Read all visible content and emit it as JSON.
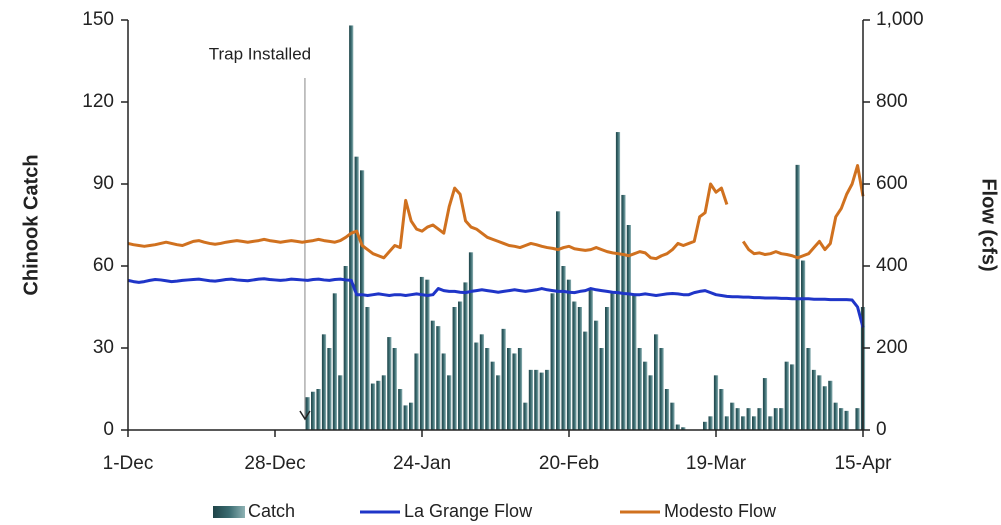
{
  "chart_data": {
    "type": "bar-line",
    "y_label": "Chinook Catch",
    "y2_label": "Flow (cfs)",
    "annotation": "Trap Installed",
    "categories": [
      "1-Dec",
      null,
      null,
      null,
      null,
      null,
      null,
      null,
      null,
      null,
      null,
      null,
      null,
      null,
      null,
      null,
      null,
      null,
      null,
      null,
      null,
      null,
      null,
      null,
      null,
      null,
      null,
      "28-Dec",
      null,
      null,
      null,
      null,
      null,
      null,
      null,
      null,
      null,
      null,
      null,
      null,
      null,
      null,
      null,
      null,
      null,
      null,
      null,
      null,
      null,
      null,
      null,
      null,
      null,
      null,
      "24-Jan",
      null,
      null,
      null,
      null,
      null,
      null,
      null,
      null,
      null,
      null,
      null,
      null,
      null,
      null,
      null,
      null,
      null,
      null,
      null,
      null,
      null,
      null,
      null,
      null,
      null,
      null,
      "20-Feb",
      null,
      null,
      null,
      null,
      null,
      null,
      null,
      null,
      null,
      null,
      null,
      null,
      null,
      null,
      null,
      null,
      null,
      null,
      null,
      null,
      null,
      null,
      null,
      null,
      null,
      null,
      "19-Mar",
      null,
      null,
      null,
      null,
      null,
      null,
      null,
      null,
      null,
      null,
      null,
      null,
      null,
      null,
      null,
      null,
      null,
      null,
      null,
      null,
      null,
      null,
      null,
      null,
      null,
      null,
      "15-Apr"
    ],
    "series": [
      {
        "name": "Catch",
        "kind": "bar",
        "color": "#3a6b70",
        "values": [
          null,
          null,
          null,
          null,
          null,
          null,
          null,
          null,
          null,
          null,
          null,
          null,
          null,
          null,
          null,
          null,
          null,
          null,
          null,
          null,
          null,
          null,
          null,
          null,
          null,
          null,
          null,
          null,
          null,
          null,
          null,
          null,
          null,
          12,
          14,
          15,
          35,
          30,
          50,
          20,
          60,
          148,
          100,
          95,
          45,
          17,
          18,
          20,
          34,
          30,
          15,
          9,
          10,
          28,
          56,
          55,
          40,
          38,
          28,
          20,
          45,
          47,
          54,
          65,
          32,
          35,
          30,
          25,
          20,
          37,
          30,
          28,
          30,
          10,
          22,
          22,
          21,
          22,
          50,
          80,
          60,
          55,
          47,
          45,
          36,
          52,
          40,
          30,
          45,
          50,
          109,
          86,
          75,
          50,
          30,
          25,
          20,
          35,
          30,
          15,
          10,
          2,
          1,
          0,
          0,
          0,
          3,
          5,
          20,
          15,
          5,
          10,
          8,
          5,
          8,
          5,
          8,
          19,
          5,
          8,
          8,
          25,
          24,
          97,
          62,
          30,
          22,
          20,
          16,
          18,
          10,
          8,
          7,
          0,
          8,
          45
        ]
      },
      {
        "name": "La Grange Flow",
        "kind": "line",
        "axis": "y2",
        "color": "#1f35c8",
        "values": [
          365,
          362,
          360,
          362,
          365,
          367,
          366,
          364,
          362,
          363,
          365,
          366,
          367,
          368,
          366,
          364,
          363,
          365,
          367,
          368,
          366,
          365,
          364,
          366,
          368,
          369,
          367,
          366,
          365,
          366,
          368,
          367,
          366,
          365,
          367,
          368,
          366,
          365,
          367,
          368,
          366,
          365,
          330,
          330,
          328,
          330,
          332,
          330,
          328,
          330,
          330,
          328,
          330,
          332,
          330,
          328,
          330,
          345,
          340,
          338,
          338,
          336,
          335,
          338,
          340,
          342,
          340,
          338,
          336,
          338,
          340,
          342,
          340,
          338,
          340,
          342,
          345,
          342,
          340,
          338,
          338,
          336,
          335,
          338,
          340,
          345,
          342,
          340,
          338,
          336,
          335,
          333,
          332,
          330,
          330,
          332,
          330,
          328,
          330,
          332,
          333,
          332,
          330,
          330,
          335,
          338,
          340,
          335,
          330,
          328,
          326,
          325,
          325,
          324,
          324,
          323,
          323,
          322,
          322,
          322,
          321,
          321,
          320,
          320,
          320,
          320,
          319,
          319,
          319,
          318,
          318,
          318,
          318,
          317,
          300,
          250
        ]
      },
      {
        "name": "Modesto Flow",
        "kind": "line",
        "axis": "y2",
        "color": "#d0711f",
        "values": [
          455,
          452,
          450,
          448,
          450,
          452,
          455,
          458,
          455,
          452,
          450,
          455,
          460,
          462,
          458,
          455,
          453,
          455,
          458,
          460,
          462,
          460,
          458,
          460,
          462,
          465,
          462,
          460,
          458,
          460,
          462,
          460,
          458,
          460,
          462,
          465,
          462,
          460,
          458,
          462,
          470,
          480,
          485,
          450,
          440,
          430,
          425,
          420,
          435,
          450,
          445,
          560,
          510,
          490,
          485,
          495,
          500,
          490,
          480,
          545,
          590,
          575,
          510,
          495,
          490,
          480,
          470,
          465,
          460,
          455,
          450,
          448,
          445,
          450,
          455,
          452,
          448,
          445,
          443,
          440,
          445,
          448,
          442,
          440,
          438,
          440,
          445,
          440,
          435,
          432,
          430,
          428,
          425,
          430,
          435,
          432,
          420,
          418,
          425,
          430,
          440,
          455,
          450,
          455,
          460,
          520,
          530,
          600,
          580,
          590,
          550,
          null,
          null,
          460,
          440,
          430,
          432,
          428,
          430,
          435,
          430,
          428,
          425,
          420,
          425,
          430,
          445,
          460,
          440,
          455,
          520,
          540,
          575,
          600,
          645,
          570
        ]
      }
    ],
    "ylim": [
      0,
      150
    ],
    "yticks": [
      0,
      30,
      60,
      90,
      120,
      150
    ],
    "y2lim": [
      0,
      1000
    ],
    "y2ticks": [
      0,
      200,
      400,
      600,
      800,
      {
        "value": 1000,
        "label": "1,000"
      }
    ],
    "legend": "bottom"
  }
}
